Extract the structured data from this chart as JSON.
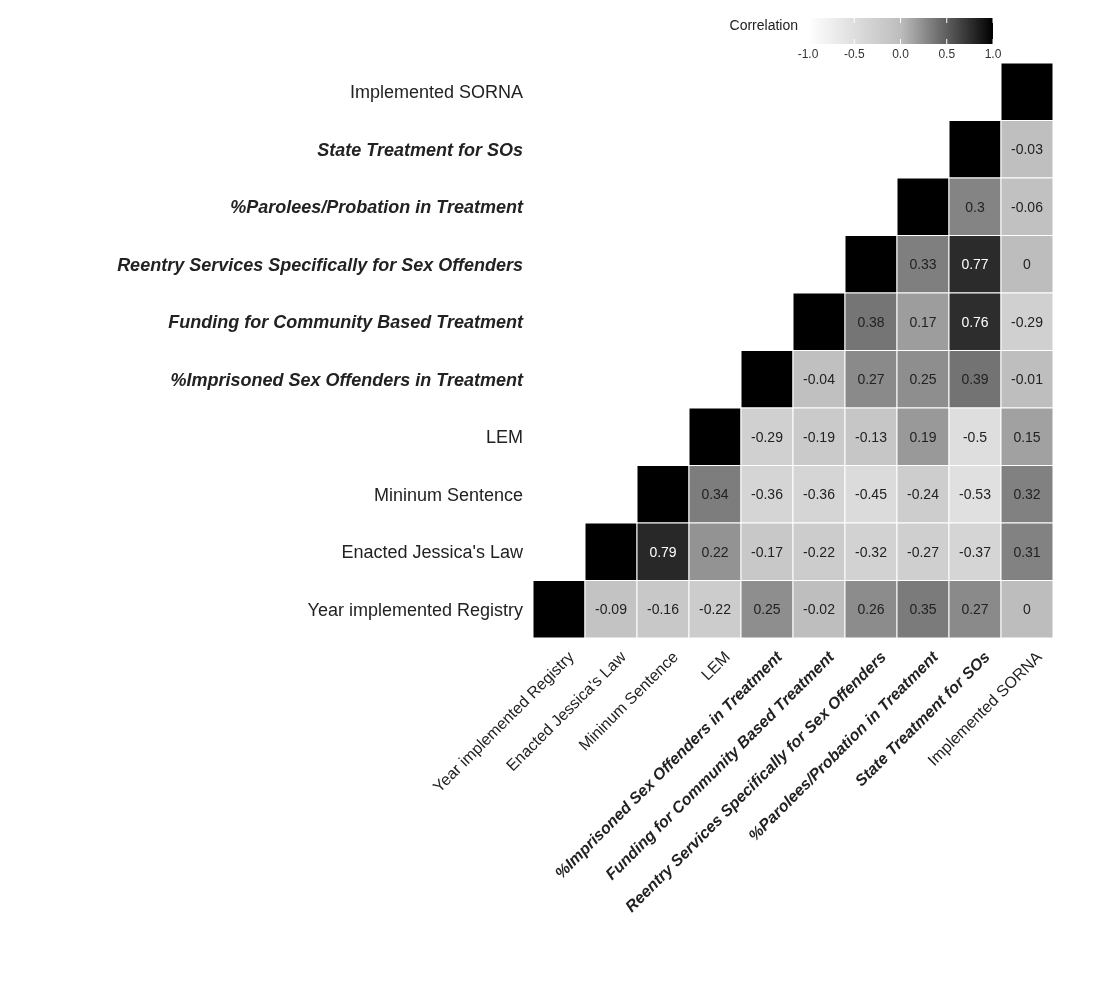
{
  "chart_data": {
    "type": "heatmap",
    "clabel": "Correlation",
    "clim": [
      -1,
      1
    ],
    "cticks": [
      {
        "value": -1,
        "label": "-1.0"
      },
      {
        "value": -0.5,
        "label": "-0.5"
      },
      {
        "value": 0,
        "label": "0.0"
      },
      {
        "value": 0.5,
        "label": "0.5"
      },
      {
        "value": 1,
        "label": "1.0"
      }
    ],
    "categories": [
      "Year implemented Registry",
      "Enacted Jessica's Law",
      "Mininum Sentence",
      "LEM",
      "%Imprisoned Sex Offenders in Treatment",
      "Funding for Community Based Treatment",
      "Reentry Services Specifically for Sex Offenders",
      "%Parolees/Probation in Treatment",
      "State Treatment for SOs",
      "Implemented SORNA"
    ],
    "y_categories": [
      "Implemented SORNA",
      "State Treatment for SOs",
      "%Parolees/Probation in Treatment",
      "Reentry Services Specifically for Sex Offenders",
      "Funding for Community Based Treatment",
      "%Imprisoned Sex Offenders in Treatment",
      "LEM",
      "Mininum Sentence",
      "Enacted Jessica's Law",
      "Year implemented Registry"
    ],
    "cells": [
      [
        null,
        null,
        null,
        null,
        null,
        null,
        null,
        null,
        null,
        1
      ],
      [
        null,
        null,
        null,
        null,
        null,
        null,
        null,
        null,
        1,
        -0.03
      ],
      [
        null,
        null,
        null,
        null,
        null,
        null,
        null,
        1,
        0.3,
        -0.06
      ],
      [
        null,
        null,
        null,
        null,
        null,
        null,
        1,
        0.33,
        0.77,
        0
      ],
      [
        null,
        null,
        null,
        null,
        null,
        1,
        0.38,
        0.17,
        0.76,
        -0.29
      ],
      [
        null,
        null,
        null,
        null,
        1,
        -0.04,
        0.27,
        0.25,
        0.39,
        -0.01
      ],
      [
        null,
        null,
        null,
        1,
        -0.29,
        -0.19,
        -0.13,
        0.19,
        -0.5,
        0.15
      ],
      [
        null,
        null,
        1,
        0.34,
        -0.36,
        -0.36,
        -0.45,
        -0.24,
        -0.53,
        0.32
      ],
      [
        null,
        1,
        0.79,
        0.22,
        -0.17,
        -0.22,
        -0.32,
        -0.27,
        -0.37,
        0.31
      ],
      [
        1,
        -0.09,
        -0.16,
        -0.22,
        0.25,
        -0.02,
        0.26,
        0.35,
        0.27,
        0
      ]
    ],
    "cell_labels": [
      [
        null,
        null,
        null,
        null,
        null,
        null,
        null,
        null,
        null,
        null
      ],
      [
        null,
        null,
        null,
        null,
        null,
        null,
        null,
        null,
        null,
        "-0.03"
      ],
      [
        null,
        null,
        null,
        null,
        null,
        null,
        null,
        null,
        "0.3",
        "-0.06"
      ],
      [
        null,
        null,
        null,
        null,
        null,
        null,
        null,
        "0.33",
        "0.77",
        "0"
      ],
      [
        null,
        null,
        null,
        null,
        null,
        null,
        "0.38",
        "0.17",
        "0.76",
        "-0.29"
      ],
      [
        null,
        null,
        null,
        null,
        null,
        "-0.04",
        "0.27",
        "0.25",
        "0.39",
        "-0.01"
      ],
      [
        null,
        null,
        null,
        null,
        "-0.29",
        "-0.19",
        "-0.13",
        "0.19",
        "-0.5",
        "0.15"
      ],
      [
        null,
        null,
        null,
        "0.34",
        "-0.36",
        "-0.36",
        "-0.45",
        "-0.24",
        "-0.53",
        "0.32"
      ],
      [
        null,
        null,
        "0.79",
        "0.22",
        "-0.17",
        "-0.22",
        "-0.32",
        "-0.27",
        "-0.37",
        "0.31"
      ],
      [
        null,
        "-0.09",
        "-0.16",
        "-0.22",
        "0.25",
        "-0.02",
        "0.26",
        "0.35",
        "0.27",
        "0"
      ]
    ]
  }
}
